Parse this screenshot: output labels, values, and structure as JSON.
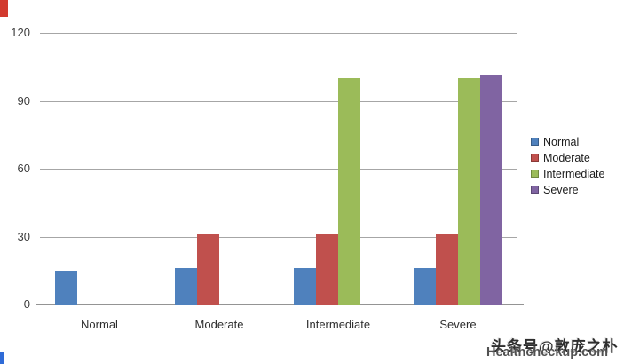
{
  "chart_data": {
    "type": "bar",
    "title": "",
    "xlabel": "",
    "ylabel": "",
    "categories": [
      "Normal",
      "Moderate",
      "Intermediate",
      "Severe"
    ],
    "series": [
      {
        "name": "Normal",
        "color": "#4F81BD",
        "values": [
          15,
          16,
          16,
          16
        ]
      },
      {
        "name": "Moderate",
        "color": "#C0504D",
        "values": [
          0,
          31,
          31,
          31
        ]
      },
      {
        "name": "Intermediate",
        "color": "#9BBB59",
        "values": [
          0,
          0,
          100,
          100
        ]
      },
      {
        "name": "Severe",
        "color": "#8064A2",
        "values": [
          0,
          0,
          0,
          101
        ]
      }
    ],
    "ylim": [
      0,
      120
    ],
    "yticks": [
      0,
      30,
      60,
      90,
      120
    ],
    "grid": true,
    "legend_position": "right"
  },
  "watermark": {
    "line1": "头条号@敦庞之朴",
    "line2": "Healthcheckup.com"
  },
  "artifacts": {
    "top_left_color": "#d23a2e",
    "bottom_left_color": "#2f6bd7"
  }
}
